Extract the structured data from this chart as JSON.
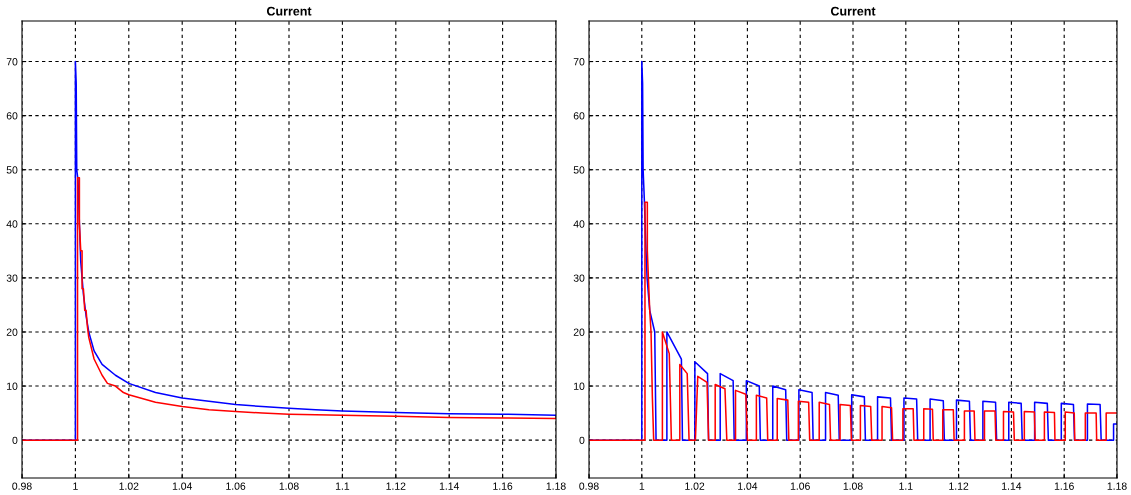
{
  "chart_data": [
    {
      "type": "line",
      "title": "Current",
      "xlim": [
        0.98,
        1.18
      ],
      "ylim": [
        -7,
        77.5
      ],
      "xticks": [
        0.98,
        1,
        1.02,
        1.04,
        1.06,
        1.08,
        1.1,
        1.12,
        1.14,
        1.16,
        1.18
      ],
      "yticks": [
        0,
        10,
        20,
        30,
        40,
        50,
        60,
        70
      ],
      "grid": true,
      "line_style": "solid",
      "series": [
        {
          "color": "#0000ff",
          "x": [
            0.98,
            1.0,
            1.0,
            1.0003,
            1.0005,
            1.001,
            1.0015,
            1.002,
            1.003,
            1.004,
            1.005,
            1.007,
            1.01,
            1.015,
            1.02,
            1.03,
            1.04,
            1.05,
            1.06,
            1.07,
            1.08,
            1.09,
            1.1,
            1.12,
            1.14,
            1.16,
            1.18
          ],
          "values": [
            0,
            0,
            70,
            66,
            50,
            48,
            40,
            33,
            27,
            23,
            20,
            16.5,
            14,
            12,
            10.5,
            8.8,
            7.8,
            7.2,
            6.6,
            6.2,
            5.9,
            5.6,
            5.4,
            5.1,
            4.9,
            4.8,
            4.6
          ]
        },
        {
          "color": "#ff0000",
          "x": [
            0.98,
            1.0008,
            1.0008,
            1.0015,
            1.0015,
            1.002,
            1.0025,
            1.0025,
            1.003,
            1.0035,
            1.004,
            1.0045,
            1.005,
            1.007,
            1.01,
            1.012,
            1.015,
            1.018,
            1.02,
            1.03,
            1.04,
            1.05,
            1.06,
            1.07,
            1.08,
            1.1,
            1.12,
            1.14,
            1.16,
            1.18
          ],
          "values": [
            0,
            0,
            48.5,
            48.5,
            40,
            35,
            35,
            28,
            28,
            24,
            24,
            21,
            19,
            15,
            12,
            10.5,
            10,
            8.8,
            8.4,
            7,
            6.2,
            5.6,
            5.3,
            5,
            4.8,
            4.6,
            4.4,
            4.2,
            4.1,
            4.0
          ]
        }
      ]
    },
    {
      "type": "line",
      "title": "Current",
      "xlim": [
        0.98,
        1.18
      ],
      "ylim": [
        -7,
        77.5
      ],
      "xticks": [
        0.98,
        1,
        1.02,
        1.04,
        1.06,
        1.08,
        1.1,
        1.12,
        1.14,
        1.16,
        1.18
      ],
      "yticks": [
        0,
        10,
        20,
        30,
        40,
        50,
        60,
        70
      ],
      "grid": true,
      "line_style": "solid",
      "series": [
        {
          "color": "#0000ff",
          "x": [
            0.98,
            1.0,
            1.0,
            1.0003,
            1.0005,
            1.001,
            1.0016,
            1.002,
            1.003,
            1.0049,
            1.0054,
            1.0095,
            1.0095,
            1.015,
            1.0154,
            1.0201,
            1.0201,
            1.0249,
            1.0253,
            1.0297,
            1.0297,
            1.0346,
            1.035,
            1.0396,
            1.0396,
            1.0445,
            1.0449,
            1.0496,
            1.0496,
            1.0545,
            1.0549,
            1.0595,
            1.0595,
            1.0645,
            1.0649,
            1.0696,
            1.0696,
            1.0744,
            1.0748,
            1.0795,
            1.0795,
            1.0843,
            1.0847,
            1.0893,
            1.0893,
            1.0942,
            1.0946,
            1.0993,
            1.0993,
            1.1041,
            1.1045,
            1.1092,
            1.1092,
            1.1142,
            1.1146,
            1.1192,
            1.1192,
            1.1241,
            1.1245,
            1.1292,
            1.1292,
            1.134,
            1.1344,
            1.139,
            1.139,
            1.1437,
            1.1441,
            1.1488,
            1.1488,
            1.1536,
            1.154,
            1.1589,
            1.1589,
            1.1635,
            1.1639,
            1.1688,
            1.1688,
            1.1736,
            1.174,
            1.1787,
            1.1787,
            1.18
          ],
          "values": [
            0,
            0,
            70,
            66,
            50,
            44,
            35,
            30,
            24,
            20,
            0,
            0,
            20,
            15,
            0,
            0,
            14.5,
            12.3,
            0,
            0,
            12.3,
            11,
            0,
            0,
            11,
            10,
            0,
            0,
            10,
            9.3,
            0,
            0,
            9.3,
            8.8,
            0,
            0,
            8.8,
            8.3,
            0,
            0,
            8.4,
            8.0,
            0,
            0,
            8.0,
            7.8,
            0,
            0,
            7.8,
            7.6,
            0,
            0,
            7.6,
            7.3,
            0,
            0,
            7.4,
            7.2,
            0,
            0,
            7.2,
            7.0,
            0,
            0,
            7.0,
            6.8,
            0,
            0,
            7.0,
            6.8,
            0,
            0,
            6.8,
            6.6,
            0,
            0,
            6.7,
            6.6,
            0,
            0,
            3,
            3
          ]
        },
        {
          "color": "#ff0000",
          "x": [
            0.98,
            1.0012,
            1.0012,
            1.0021,
            1.0021,
            1.0025,
            1.003,
            1.0035,
            1.004,
            1.0045,
            1.0078,
            1.0078,
            1.0104,
            1.0112,
            1.0144,
            1.0144,
            1.0172,
            1.0179,
            1.0203,
            1.0212,
            1.0247,
            1.0253,
            1.0278,
            1.0278,
            1.0315,
            1.0322,
            1.0355,
            1.0355,
            1.0394,
            1.04,
            1.0434,
            1.0434,
            1.0473,
            1.0477,
            1.0513,
            1.0513,
            1.0553,
            1.0557,
            1.0593,
            1.0593,
            1.0632,
            1.0636,
            1.0672,
            1.0672,
            1.0711,
            1.0715,
            1.0751,
            1.0751,
            1.079,
            1.0794,
            1.0828,
            1.0828,
            1.0867,
            1.0871,
            1.091,
            1.091,
            1.0946,
            1.095,
            1.0989,
            1.0989,
            1.1028,
            1.1031,
            1.1068,
            1.1068,
            1.1101,
            1.1104,
            1.114,
            1.114,
            1.118,
            1.1183,
            1.1222,
            1.1222,
            1.1259,
            1.1262,
            1.1298,
            1.1298,
            1.1338,
            1.1341,
            1.137,
            1.137,
            1.1408,
            1.1411,
            1.1449,
            1.1449,
            1.1487,
            1.149,
            1.1525,
            1.1525,
            1.1563,
            1.1565,
            1.1604,
            1.1604,
            1.1638,
            1.164,
            1.168,
            1.168,
            1.1721,
            1.1723,
            1.1759,
            1.1759,
            1.18
          ],
          "values": [
            0,
            0,
            44,
            44,
            35,
            30,
            24,
            20,
            8,
            0,
            0,
            20,
            16,
            0,
            0,
            14,
            12.3,
            0,
            0,
            11.8,
            10.7,
            0,
            0,
            10.3,
            9.5,
            0,
            0,
            9.2,
            8.5,
            0,
            0,
            8.3,
            7.8,
            0,
            0,
            7.7,
            7.4,
            0,
            0,
            7.2,
            7.0,
            0,
            0,
            7.0,
            6.6,
            0,
            0,
            6.6,
            6.4,
            0,
            0,
            6.4,
            6.2,
            0,
            0,
            6.2,
            6.0,
            0,
            0,
            5.8,
            5.8,
            0,
            0,
            5.8,
            5.7,
            0,
            0,
            5.6,
            5.6,
            0,
            0,
            5.4,
            5.4,
            0,
            0,
            5.4,
            5.4,
            0,
            0,
            5.3,
            5.2,
            0,
            0,
            5.3,
            5.2,
            0,
            0,
            5.2,
            5.1,
            0,
            0,
            5.2,
            5.0,
            0,
            0,
            5.0,
            5.0,
            0,
            0,
            5.0,
            5.0
          ]
        }
      ]
    }
  ]
}
